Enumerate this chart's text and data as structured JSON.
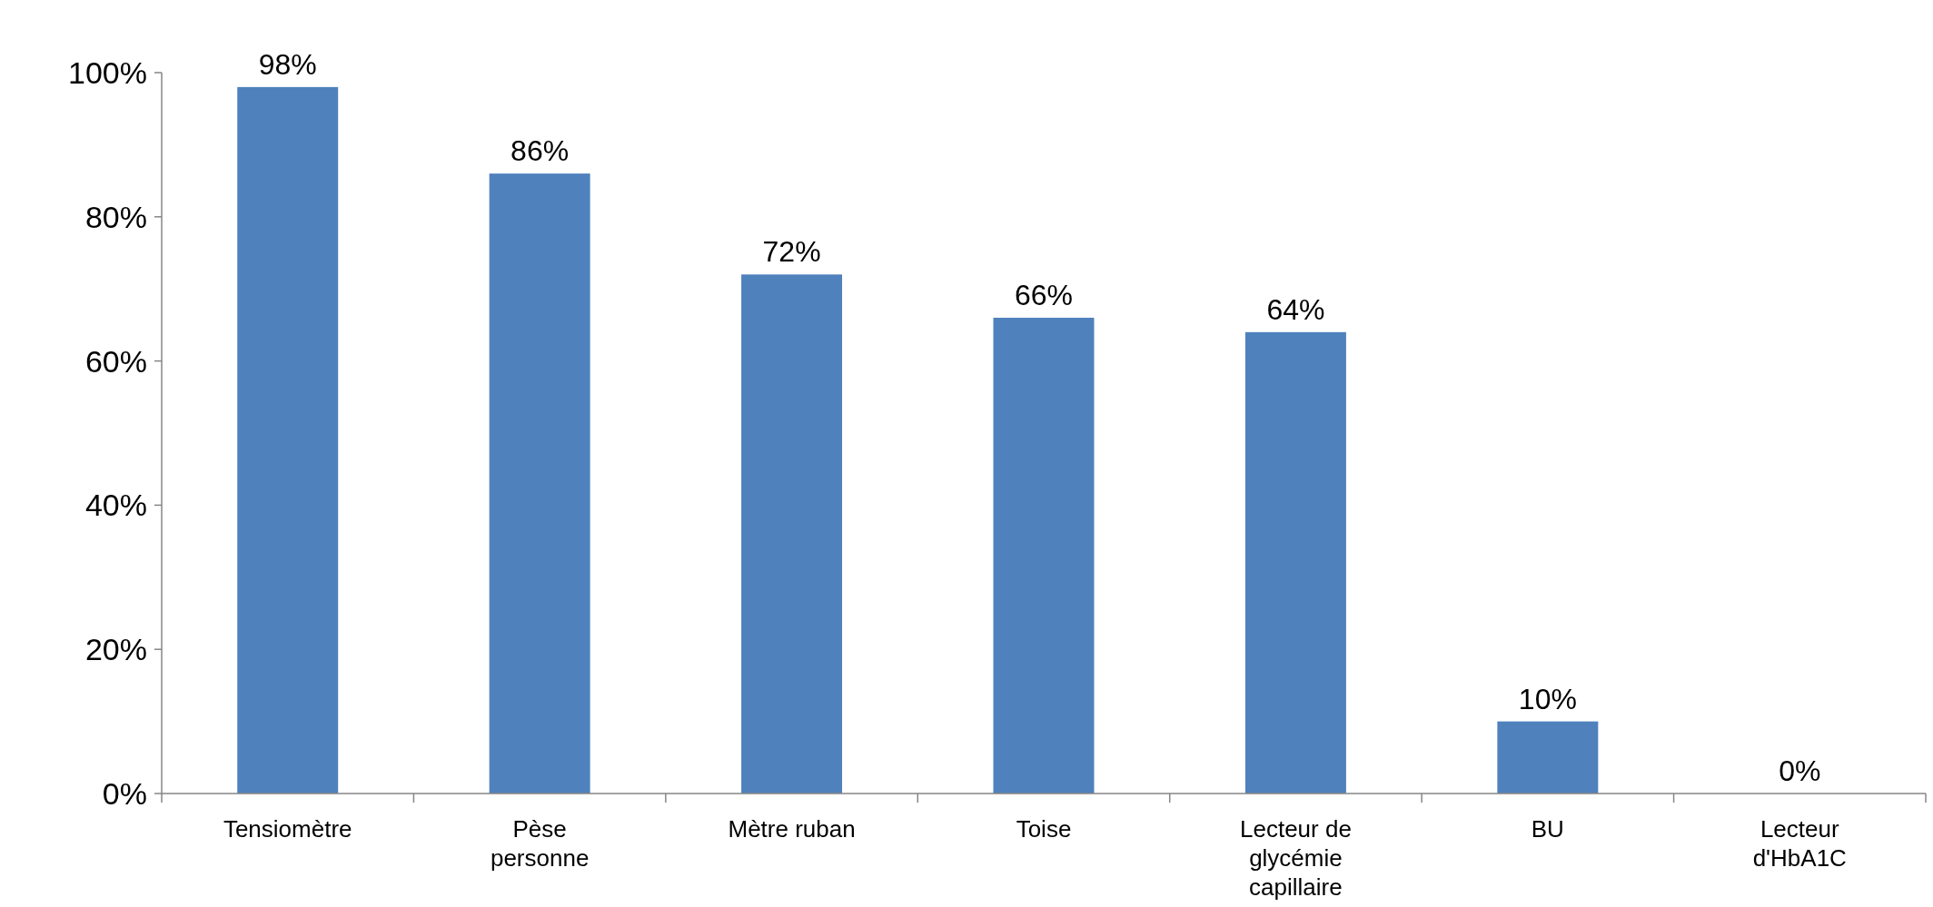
{
  "chart_data": {
    "type": "bar",
    "categories": [
      "Tensiomètre",
      "Pèse personne",
      "Mètre ruban",
      "Toise",
      "Lecteur de glycémie capillaire",
      "BU",
      "Lecteur d'HbA1C"
    ],
    "values": [
      98,
      86,
      72,
      66,
      64,
      10,
      0
    ],
    "value_labels": [
      "98%",
      "86%",
      "72%",
      "66%",
      "64%",
      "10%",
      "0%"
    ],
    "color": "#4f81bd",
    "ylim": [
      0,
      100
    ],
    "yticks": [
      {
        "value": 0,
        "label": "0%"
      },
      {
        "value": 20,
        "label": "20%"
      },
      {
        "value": 40,
        "label": "40%"
      },
      {
        "value": 60,
        "label": "60%"
      },
      {
        "value": 80,
        "label": "80%"
      },
      {
        "value": 100,
        "label": "100%"
      }
    ],
    "grid": false
  }
}
